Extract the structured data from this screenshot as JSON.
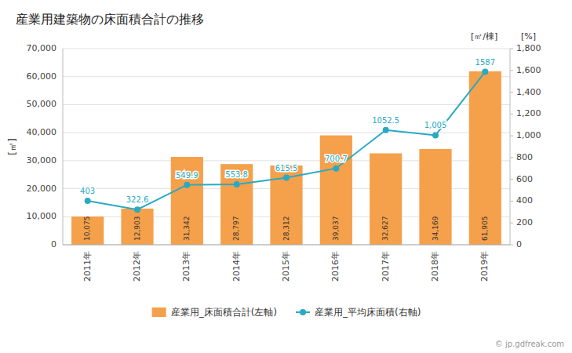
{
  "chart_data": {
    "type": "bar",
    "title": "産業用建築物の床面積合計の推移",
    "categories": [
      "2011年",
      "2012年",
      "2013年",
      "2014年",
      "2015年",
      "2016年",
      "2017年",
      "2018年",
      "2019年"
    ],
    "series": [
      {
        "name": "産業用_床面積合計(左軸)",
        "type": "bar",
        "color": "#f5a04a",
        "values": [
          10075,
          12903,
          31342,
          28797,
          28312,
          39037,
          32627,
          34169,
          61905
        ],
        "value_labels": [
          "10,075",
          "12,903",
          "31,342",
          "28,797",
          "28,312",
          "39,037",
          "32,627",
          "34,169",
          "61,905"
        ]
      },
      {
        "name": "産業用_平均床面積(右軸)",
        "type": "line",
        "color": "#29aac4",
        "marker": "circle",
        "axis": "y2",
        "values": [
          403,
          322.6,
          549.9,
          553.8,
          615.5,
          700.7,
          1052.5,
          1005,
          1587
        ],
        "value_labels": [
          "403",
          "322.6",
          "549.9",
          "553.8",
          "615.5",
          "700.7",
          "1052.5",
          "1,005",
          "1587"
        ]
      }
    ],
    "y_label": "[㎡]",
    "y2_label": "[㎡/棟]",
    "annotations": [
      "[%]",
      "© jp.gdfreak.com"
    ],
    "ylim": [
      0,
      70000
    ],
    "yticks": [
      0,
      {
        "value": 10000,
        "label": "10,000"
      },
      {
        "value": 20000,
        "label": "20,000"
      },
      {
        "value": 30000,
        "label": "30,000"
      },
      {
        "value": 40000,
        "label": "40,000"
      },
      {
        "value": 50000,
        "label": "50,000"
      },
      {
        "value": 60000,
        "label": "60,000"
      },
      {
        "value": 70000,
        "label": "70,000"
      }
    ],
    "y2lim": [
      0,
      1800
    ],
    "y2ticks": [
      0,
      200,
      400,
      600,
      800,
      {
        "value": 1000,
        "label": "1,000"
      },
      {
        "value": 1200,
        "label": "1,200"
      },
      {
        "value": 1400,
        "label": "1,400"
      },
      {
        "value": 1600,
        "label": "1,600"
      },
      {
        "value": 1800,
        "label": "1,800"
      }
    ],
    "grid": true,
    "legend": "bottom",
    "data_labels": true
  }
}
